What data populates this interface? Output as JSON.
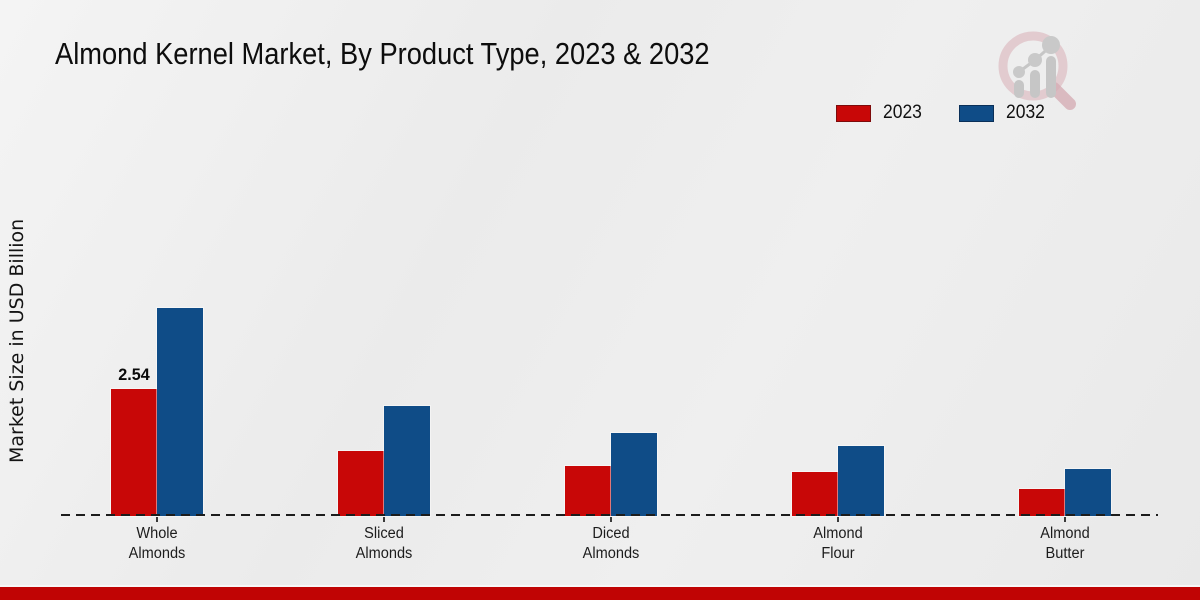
{
  "page": {
    "title": "Almond Kernel Market, By Product Type, 2023 & 2032"
  },
  "y_axis_label": "Market Size in USD Billion",
  "legend": {
    "items": [
      {
        "label": "2023",
        "color": "#C80707"
      },
      {
        "label": "2032",
        "color": "#0F4C87"
      }
    ]
  },
  "chart_data": {
    "type": "bar",
    "title": "Almond Kernel Market, By Product Type, 2023 & 2032",
    "xlabel": "",
    "ylabel": "Market Size in USD Billion",
    "ylim": [
      0,
      4.5
    ],
    "grid": false,
    "legend_position": "top-right",
    "baseline_style": "dashed",
    "categories": [
      "Whole Almonds",
      "Sliced Almonds",
      "Diced Almonds",
      "Almond Flour",
      "Almond Butter"
    ],
    "series": [
      {
        "name": "2023",
        "color": "#C80707",
        "values": [
          2.54,
          1.3,
          1.0,
          0.88,
          0.54
        ]
      },
      {
        "name": "2032",
        "color": "#0F4C87",
        "values": [
          4.16,
          2.2,
          1.65,
          1.4,
          0.93
        ]
      }
    ],
    "bar_labels": [
      {
        "series_index": 0,
        "category_index": 0,
        "text": "2.54"
      }
    ]
  },
  "watermark": {
    "icon": "magnifier-bar-chart-logo",
    "circle_color": "#ddbfc4",
    "bars_color": "#c6c6c6"
  },
  "brand": {
    "bottom_strip_color": "#C00404"
  }
}
